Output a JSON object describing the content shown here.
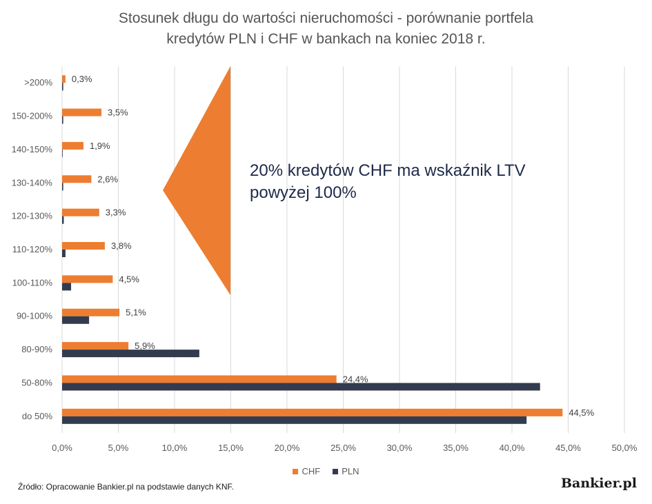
{
  "chart_data": {
    "type": "bar",
    "orientation": "horizontal",
    "title_lines": [
      "Stosunek długu do wartości nieruchomości - porównanie portfela",
      "kredytów PLN i CHF w bankach na koniec 2018 r."
    ],
    "categories": [
      ">200%",
      "150-200%",
      "140-150%",
      "130-140%",
      "120-130%",
      "110-120%",
      "100-110%",
      "90-100%",
      "80-90%",
      "50-80%",
      "do 50%"
    ],
    "series": [
      {
        "name": "CHF",
        "color": "#ed7d31",
        "values": [
          0.3,
          3.5,
          1.9,
          2.6,
          3.3,
          3.8,
          4.5,
          5.1,
          5.9,
          24.4,
          44.5
        ],
        "labels": [
          "0,3%",
          "3,5%",
          "1,9%",
          "2,6%",
          "3,3%",
          "3,8%",
          "4,5%",
          "5,1%",
          "5,9%",
          "24,4%",
          "44,5%"
        ]
      },
      {
        "name": "PLN",
        "color": "#323c4e",
        "values": [
          0.1,
          0.1,
          0.05,
          0.1,
          0.15,
          0.3,
          0.8,
          2.4,
          12.2,
          42.5,
          41.3
        ]
      }
    ],
    "xlim": [
      0,
      50
    ],
    "xticks": [
      0,
      5,
      10,
      15,
      20,
      25,
      30,
      35,
      40,
      45,
      50
    ],
    "xtick_labels": [
      "0,0%",
      "5,0%",
      "10,0%",
      "15,0%",
      "20,0%",
      "25,0%",
      "30,0%",
      "35,0%",
      "40,0%",
      "45,0%",
      "50,0%"
    ],
    "grid": "vertical",
    "legend_placement": "bottom",
    "annotation": {
      "lines": [
        "20% kredytów CHF ma wskaźnik LTV",
        "powyżej 100%"
      ],
      "marker_color": "#ed7d31"
    }
  },
  "footer": {
    "source": "Źródło: Opracowanie Bankier.pl na podstawie danych KNF.",
    "logo": "Bankier.pl"
  }
}
